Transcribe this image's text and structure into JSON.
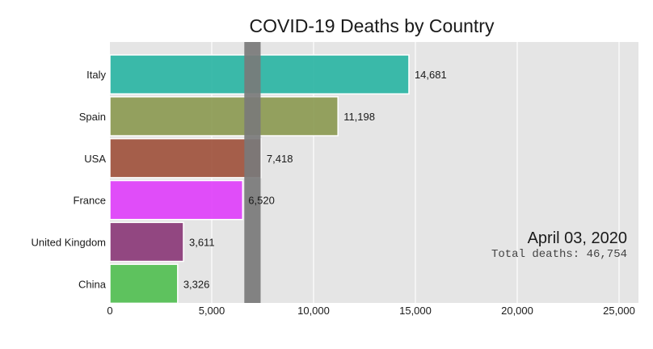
{
  "chart_data": {
    "type": "bar",
    "orientation": "horizontal",
    "title": "COVID-19 Deaths by Country",
    "categories": [
      "Italy",
      "Spain",
      "USA",
      "France",
      "United Kingdom",
      "China"
    ],
    "values": [
      14681,
      11198,
      7418,
      6520,
      3611,
      3326
    ],
    "value_labels": [
      "14,681",
      "11,198",
      "7,418",
      "6,520",
      "3,611",
      "3,326"
    ],
    "colors": [
      "#2bb5a4",
      "#8c9a52",
      "#a0523d",
      "#e040fb",
      "#8b3a78",
      "#52bf52"
    ],
    "xlim": [
      0,
      26000
    ],
    "xticks": [
      0,
      5000,
      10000,
      15000,
      20000,
      25000
    ],
    "xtick_labels": [
      "0",
      "5,000",
      "10,000",
      "15,000",
      "20,000",
      "25,000"
    ],
    "grid": true,
    "background": "#e5e5e5",
    "highlight_band": {
      "from": 6600,
      "to": 7400,
      "color": "#7a7a7a"
    },
    "date_label": "April 03, 2020",
    "total_label": "Total deaths: 46,754"
  }
}
